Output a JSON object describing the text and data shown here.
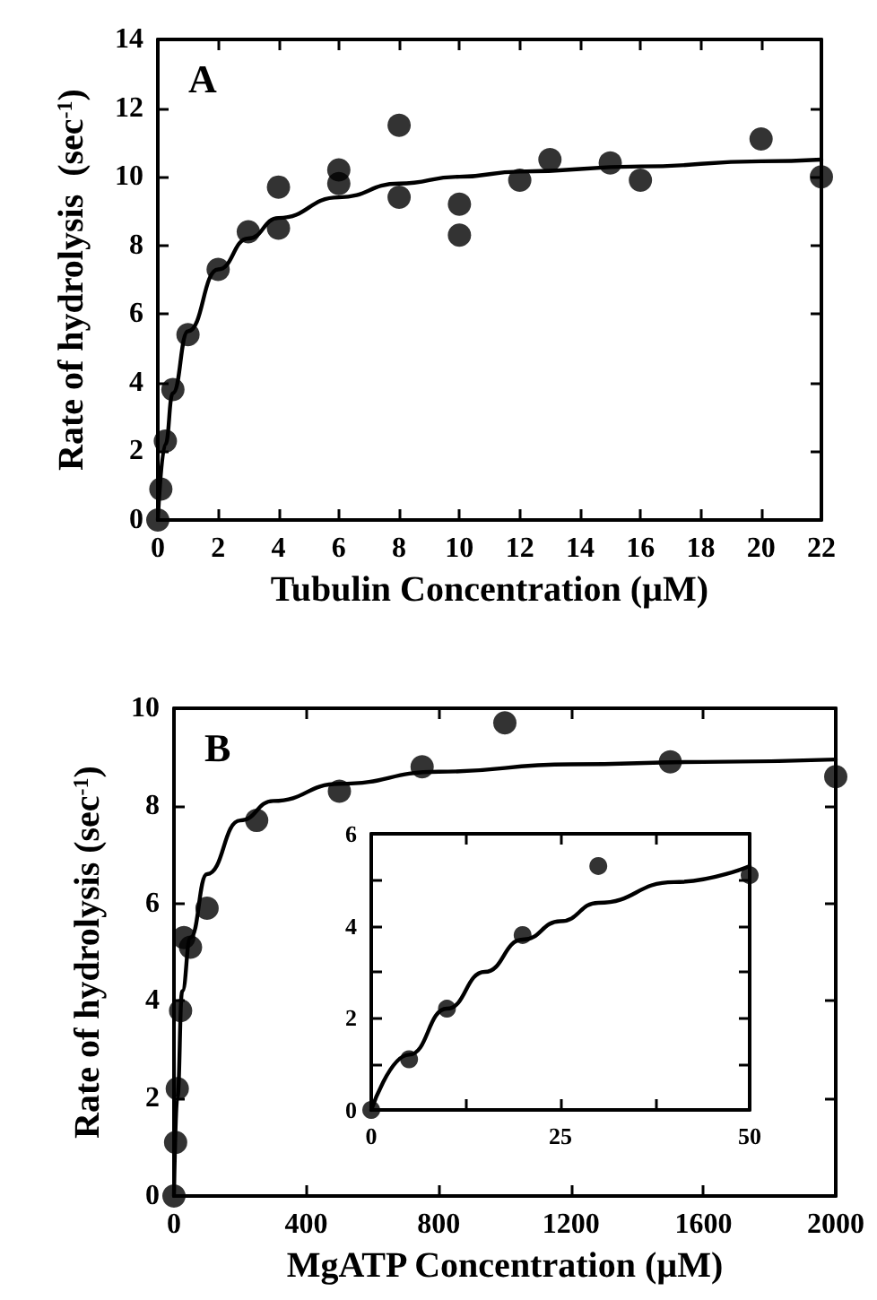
{
  "chart_data": [
    {
      "type": "scatter",
      "title": "A",
      "xlabel": "Tubulin Concentration (µM)",
      "ylabel": "Rate of hydrolysis  (sec$^{-1}$)",
      "xlim": [
        0,
        22
      ],
      "xticks": [
        0,
        2,
        4,
        6,
        8,
        10,
        12,
        14,
        16,
        18,
        20,
        22
      ],
      "ylim": [
        0,
        14
      ],
      "yticks": [
        0,
        2,
        4,
        6,
        8,
        10,
        12,
        14
      ],
      "grid": false,
      "series": [
        {
          "type": "scatter",
          "color": "#000000",
          "marker": "circle",
          "x": [
            0,
            0.1,
            0.25,
            0.5,
            1,
            2,
            3,
            4,
            4,
            6,
            6,
            8,
            8,
            10,
            10,
            12,
            13,
            15,
            16,
            20,
            22
          ],
          "values": [
            0,
            0.9,
            2.3,
            3.8,
            5.4,
            7.3,
            8.4,
            8.5,
            9.7,
            10.2,
            9.8,
            11.5,
            9.4,
            9.2,
            8.3,
            9.9,
            10.5,
            10.4,
            9.9,
            11.1,
            10.0
          ]
        },
        {
          "type": "line",
          "color": "#000000",
          "marker": "none",
          "line_style": "solid",
          "x": [
            0,
            0.25,
            0.5,
            1,
            2,
            3,
            4,
            6,
            8,
            10,
            12,
            16,
            20,
            22
          ],
          "values": [
            0,
            2.2,
            3.7,
            5.5,
            7.3,
            8.2,
            8.8,
            9.4,
            9.8,
            10.0,
            10.15,
            10.3,
            10.45,
            10.5
          ]
        }
      ]
    },
    {
      "type": "scatter",
      "title": "B",
      "xlabel": "MgATP Concentration (µM)",
      "ylabel": "Rate of hydrolysis (sec$^{-1}$)",
      "xlim": [
        0,
        2000
      ],
      "xticks": [
        0,
        400,
        800,
        1200,
        1600,
        2000
      ],
      "ylim": [
        0,
        10
      ],
      "yticks": [
        0,
        2,
        4,
        6,
        8,
        10
      ],
      "grid": false,
      "series": [
        {
          "type": "scatter",
          "color": "#000000",
          "marker": "circle",
          "x": [
            0,
            5,
            10,
            20,
            30,
            50,
            100,
            250,
            500,
            750,
            1000,
            1500,
            2000
          ],
          "values": [
            0,
            1.1,
            2.2,
            3.8,
            5.3,
            5.1,
            5.9,
            7.7,
            8.3,
            8.8,
            9.7,
            8.9,
            8.6
          ]
        },
        {
          "type": "line",
          "color": "#000000",
          "marker": "none",
          "line_style": "solid",
          "x": [
            0,
            10,
            25,
            50,
            100,
            200,
            300,
            500,
            800,
            1200,
            1600,
            2000
          ],
          "values": [
            0,
            2.0,
            4.2,
            5.3,
            6.6,
            7.7,
            8.1,
            8.45,
            8.7,
            8.85,
            8.9,
            8.95
          ]
        }
      ]
    },
    {
      "type": "scatter",
      "xlim": [
        0,
        50
      ],
      "xticks": [
        0,
        {
          "value": 12.5,
          "label": null
        },
        25,
        {
          "value": 37.5,
          "label": null
        },
        50
      ],
      "ylim": [
        0,
        6
      ],
      "yticks": [
        0,
        {
          "value": 1,
          "label": null
        },
        2,
        {
          "value": 3,
          "label": null
        },
        4,
        {
          "value": 5,
          "label": null
        },
        6
      ],
      "grid": false,
      "series": [
        {
          "type": "scatter",
          "color": "#000000",
          "marker": "circle",
          "x": [
            0,
            5,
            10,
            20,
            30,
            50
          ],
          "values": [
            0,
            1.1,
            2.2,
            3.8,
            5.3,
            5.1
          ]
        },
        {
          "type": "line",
          "color": "#000000",
          "marker": "none",
          "line_style": "solid",
          "x": [
            0,
            5,
            10,
            15,
            20,
            25,
            30,
            40,
            50
          ],
          "values": [
            0,
            1.2,
            2.2,
            3.0,
            3.7,
            4.1,
            4.5,
            4.95,
            5.3
          ]
        }
      ]
    }
  ]
}
